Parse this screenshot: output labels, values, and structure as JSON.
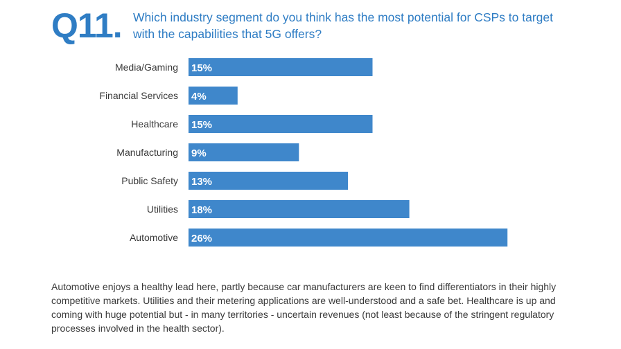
{
  "header": {
    "question_number": "Q11.",
    "question_text": "Which industry segment do you think has the most potential for CSPs to target with the capabilities that 5G offers?"
  },
  "chart_data": {
    "type": "bar",
    "orientation": "horizontal",
    "title": "",
    "xlabel": "",
    "ylabel": "",
    "categories": [
      "Media/Gaming",
      "Financial Services",
      "Healthcare",
      "Manufacturing",
      "Public Safety",
      "Utilities",
      "Automotive"
    ],
    "values": [
      15,
      4,
      15,
      9,
      13,
      18,
      26
    ],
    "value_labels": [
      "15%",
      "4%",
      "15%",
      "9%",
      "13%",
      "18%",
      "26%"
    ],
    "unit": "%",
    "xlim": [
      0,
      26
    ],
    "grid": false,
    "legend": "none",
    "bar_color": "#3f87cb",
    "label_color": "#ffffff"
  },
  "commentary": "Automotive enjoys a healthy lead here, partly because car manufacturers are keen to find differentiators in their highly competitive markets. Utilities and their metering applications are well-understood and a safe bet. Healthcare is up and coming with huge potential but - in many territories - uncertain revenues (not least because of the stringent regulatory processes involved in the health sector).",
  "colors": {
    "accent": "#2f7dc4",
    "bar": "#3f87cb",
    "text": "#3a3a3a"
  }
}
